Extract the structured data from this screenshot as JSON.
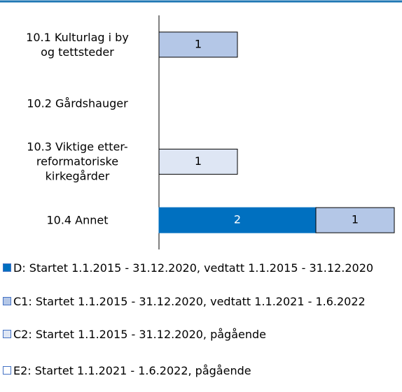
{
  "chart_data": {
    "type": "stacked-barh",
    "categories": [
      "10.1 Kulturlag i by\nog tettsteder",
      "10.2 Gårdshauger",
      "10.3 Viktige etter-\nreformatoriske\nkirkegårder",
      "10.4 Annet"
    ],
    "series": [
      {
        "name": "D: Startet 1.1.2015 - 31.12.2020, vedtatt 1.1.2015 - 31.12.2020",
        "color": "#0070c0",
        "values": [
          null,
          null,
          null,
          2
        ]
      },
      {
        "name": "C1: Startet 1.1.2015 - 31.12.2020, vedtatt 1.1.2021 - 1.6.2022",
        "color": "#b4c7e7",
        "values": [
          1,
          null,
          null,
          1
        ]
      },
      {
        "name": "C2: Startet 1.1.2015 - 31.12.2020, pågående",
        "color": "#dee6f4",
        "values": [
          null,
          null,
          1,
          null
        ]
      },
      {
        "name": "E2: Startet 1.1.2021 - 1.6.2022, pågående",
        "color": "#ffffff",
        "values": [
          null,
          null,
          null,
          null
        ]
      }
    ],
    "xlim": [
      0,
      3
    ]
  }
}
